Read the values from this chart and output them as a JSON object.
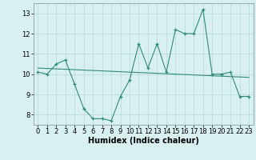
{
  "xlabel": "Humidex (Indice chaleur)",
  "x": [
    0,
    1,
    2,
    3,
    4,
    5,
    6,
    7,
    8,
    9,
    10,
    11,
    12,
    13,
    14,
    15,
    16,
    17,
    18,
    19,
    20,
    21,
    22,
    23
  ],
  "y_main": [
    10.1,
    10.0,
    10.5,
    10.7,
    9.5,
    8.3,
    7.8,
    7.8,
    7.7,
    8.9,
    9.7,
    11.5,
    10.3,
    11.5,
    10.1,
    12.2,
    12.0,
    12.0,
    13.2,
    10.0,
    10.0,
    10.1,
    8.9,
    8.9
  ],
  "y_trend": [
    10.3,
    10.28,
    10.26,
    10.24,
    10.22,
    10.2,
    10.18,
    10.16,
    10.14,
    10.12,
    10.1,
    10.08,
    10.06,
    10.04,
    10.02,
    10.0,
    9.98,
    9.96,
    9.94,
    9.92,
    9.9,
    9.88,
    9.86,
    9.84
  ],
  "line_color": "#2e8b7a",
  "bg_color": "#d8f0f0",
  "grid_color": "#b8d8d8",
  "xlim": [
    -0.5,
    23.5
  ],
  "ylim": [
    7.5,
    13.5
  ],
  "yticks": [
    8,
    9,
    10,
    11,
    12,
    13
  ],
  "xticks": [
    0,
    1,
    2,
    3,
    4,
    5,
    6,
    7,
    8,
    9,
    10,
    11,
    12,
    13,
    14,
    15,
    16,
    17,
    18,
    19,
    20,
    21,
    22,
    23
  ],
  "xlabel_fontsize": 7,
  "tick_fontsize": 6
}
